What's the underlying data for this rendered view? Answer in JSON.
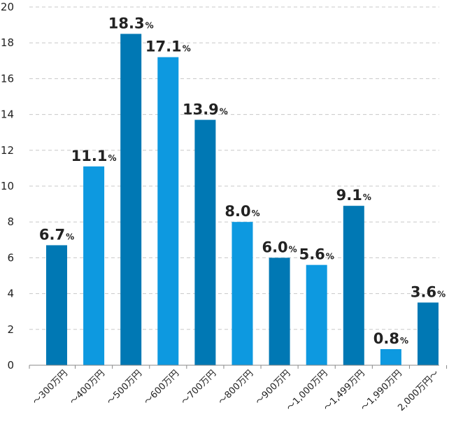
{
  "chart_data": {
    "type": "bar",
    "title": "",
    "xlabel": "",
    "ylabel": "",
    "categories": [
      "～300万円",
      "～400万円",
      "～500万円",
      "～600万円",
      "～700万円",
      "～800万円",
      "～900万円",
      "～1,000万円",
      "～1,499万円",
      "～1,990万円",
      "2,000万円～"
    ],
    "values": [
      6.7,
      11.1,
      18.3,
      17.1,
      13.9,
      8.0,
      6.0,
      5.6,
      9.1,
      0.8,
      3.6
    ],
    "bar_heights": [
      6.7,
      11.1,
      18.5,
      17.2,
      13.7,
      8.0,
      6.0,
      5.6,
      8.9,
      0.9,
      3.5
    ],
    "data_labels": [
      "6.7",
      "11.1",
      "18.3",
      "17.1",
      "13.9",
      "8.0",
      "6.0",
      "5.6",
      "9.1",
      "0.8",
      "3.6"
    ],
    "label_suffix": "%",
    "ylim": [
      0,
      20
    ],
    "yticks": [
      0,
      2,
      4,
      6,
      8,
      10,
      12,
      14,
      16,
      18,
      20
    ],
    "grid": true,
    "legend": "none",
    "colors": {
      "bar_dark": "#0078b4",
      "bar_light": "#0d99e0",
      "grid": "#c8c8c8",
      "axis": "#888888",
      "text": "#222222"
    }
  }
}
